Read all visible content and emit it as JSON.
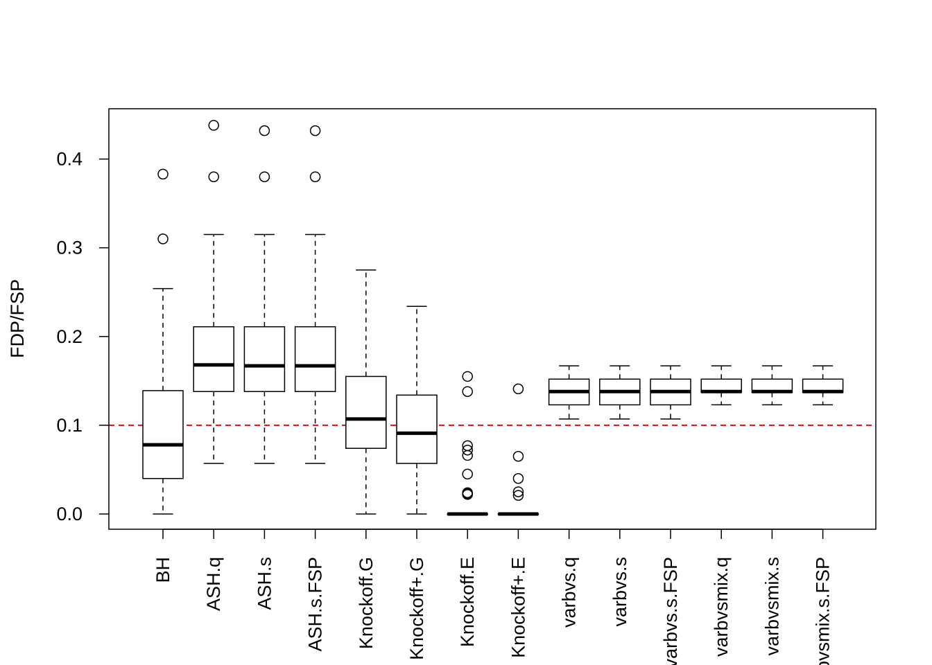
{
  "chart_data": {
    "type": "box",
    "title": "",
    "xlabel": "",
    "ylabel": "FDP/FSP",
    "ylim": [
      -0.017,
      0.456
    ],
    "yticks": [
      0.0,
      0.1,
      0.2,
      0.3,
      0.4
    ],
    "ytick_labels": [
      "0.0",
      "0.1",
      "0.2",
      "0.3",
      "0.4"
    ],
    "reference_line": {
      "y": 0.1,
      "style": "dashed",
      "color": "#ff0000"
    },
    "grid": false,
    "categories": [
      "BH",
      "ASH.q",
      "ASH.s",
      "ASH.s.FSP",
      "Knockoff.G",
      "Knockoff+.G",
      "Knockoff.E",
      "Knockoff+.E",
      "varbvs.q",
      "varbvs.s",
      "varbvs.s.FSP",
      "varbvsmix.q",
      "varbvsmix.s",
      "varbvsmix.s.FSP"
    ],
    "boxes": [
      {
        "whisker_low": 0.0,
        "q1": 0.04,
        "median": 0.078,
        "q3": 0.139,
        "whisker_high": 0.254,
        "outliers": [
          0.31,
          0.383
        ]
      },
      {
        "whisker_low": 0.057,
        "q1": 0.138,
        "median": 0.168,
        "q3": 0.211,
        "whisker_high": 0.315,
        "outliers": [
          0.38,
          0.438
        ]
      },
      {
        "whisker_low": 0.057,
        "q1": 0.138,
        "median": 0.167,
        "q3": 0.211,
        "whisker_high": 0.315,
        "outliers": [
          0.38,
          0.432
        ]
      },
      {
        "whisker_low": 0.057,
        "q1": 0.138,
        "median": 0.167,
        "q3": 0.211,
        "whisker_high": 0.315,
        "outliers": [
          0.38,
          0.432
        ]
      },
      {
        "whisker_low": 0.0,
        "q1": 0.074,
        "median": 0.107,
        "q3": 0.155,
        "whisker_high": 0.275,
        "outliers": []
      },
      {
        "whisker_low": 0.0,
        "q1": 0.057,
        "median": 0.091,
        "q3": 0.134,
        "whisker_high": 0.234,
        "outliers": []
      },
      {
        "whisker_low": 0.0,
        "q1": 0.0,
        "median": 0.0,
        "q3": 0.0,
        "whisker_high": 0.0,
        "outliers": [
          0.022,
          0.023,
          0.024,
          0.045,
          0.066,
          0.072,
          0.077,
          0.138,
          0.155
        ]
      },
      {
        "whisker_low": 0.0,
        "q1": 0.0,
        "median": 0.0,
        "q3": 0.0,
        "whisker_high": 0.0,
        "outliers": [
          0.021,
          0.025,
          0.04,
          0.065,
          0.141
        ]
      },
      {
        "whisker_low": 0.107,
        "q1": 0.123,
        "median": 0.138,
        "q3": 0.152,
        "whisker_high": 0.167,
        "outliers": []
      },
      {
        "whisker_low": 0.107,
        "q1": 0.123,
        "median": 0.138,
        "q3": 0.152,
        "whisker_high": 0.167,
        "outliers": []
      },
      {
        "whisker_low": 0.107,
        "q1": 0.123,
        "median": 0.138,
        "q3": 0.152,
        "whisker_high": 0.167,
        "outliers": []
      },
      {
        "whisker_low": 0.123,
        "q1": 0.137,
        "median": 0.138,
        "q3": 0.152,
        "whisker_high": 0.167,
        "outliers": []
      },
      {
        "whisker_low": 0.123,
        "q1": 0.137,
        "median": 0.138,
        "q3": 0.152,
        "whisker_high": 0.167,
        "outliers": []
      },
      {
        "whisker_low": 0.123,
        "q1": 0.137,
        "median": 0.138,
        "q3": 0.152,
        "whisker_high": 0.167,
        "outliers": []
      }
    ]
  }
}
